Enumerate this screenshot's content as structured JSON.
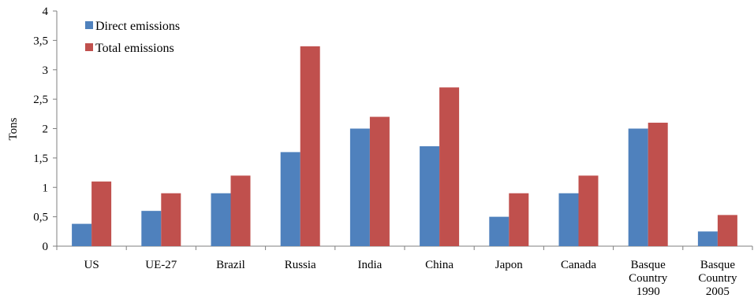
{
  "chart_data": {
    "type": "bar",
    "title": "",
    "xlabel": "",
    "ylabel": "Tons",
    "ylim": [
      0,
      4
    ],
    "yticks": [
      "0",
      "0,5",
      "1",
      "1,5",
      "2",
      "2,5",
      "3",
      "3,5",
      "4"
    ],
    "grid": false,
    "legend_position": "top-left",
    "categories": [
      [
        "US"
      ],
      [
        "UE-27"
      ],
      [
        "Brazil"
      ],
      [
        "Russia"
      ],
      [
        "India"
      ],
      [
        "China"
      ],
      [
        "Japon"
      ],
      [
        "Canada"
      ],
      [
        "Basque",
        "Country",
        "1990"
      ],
      [
        "Basque",
        "Country",
        "2005"
      ]
    ],
    "series": [
      {
        "name": "Direct emissions",
        "color": "#4f81bd",
        "values": [
          0.38,
          0.6,
          0.9,
          1.6,
          2.0,
          1.7,
          0.5,
          0.9,
          2.0,
          0.25
        ]
      },
      {
        "name": "Total emissions",
        "color": "#c0504d",
        "values": [
          1.1,
          0.9,
          1.2,
          3.4,
          2.2,
          2.7,
          0.9,
          1.2,
          2.1,
          0.53
        ]
      }
    ]
  }
}
